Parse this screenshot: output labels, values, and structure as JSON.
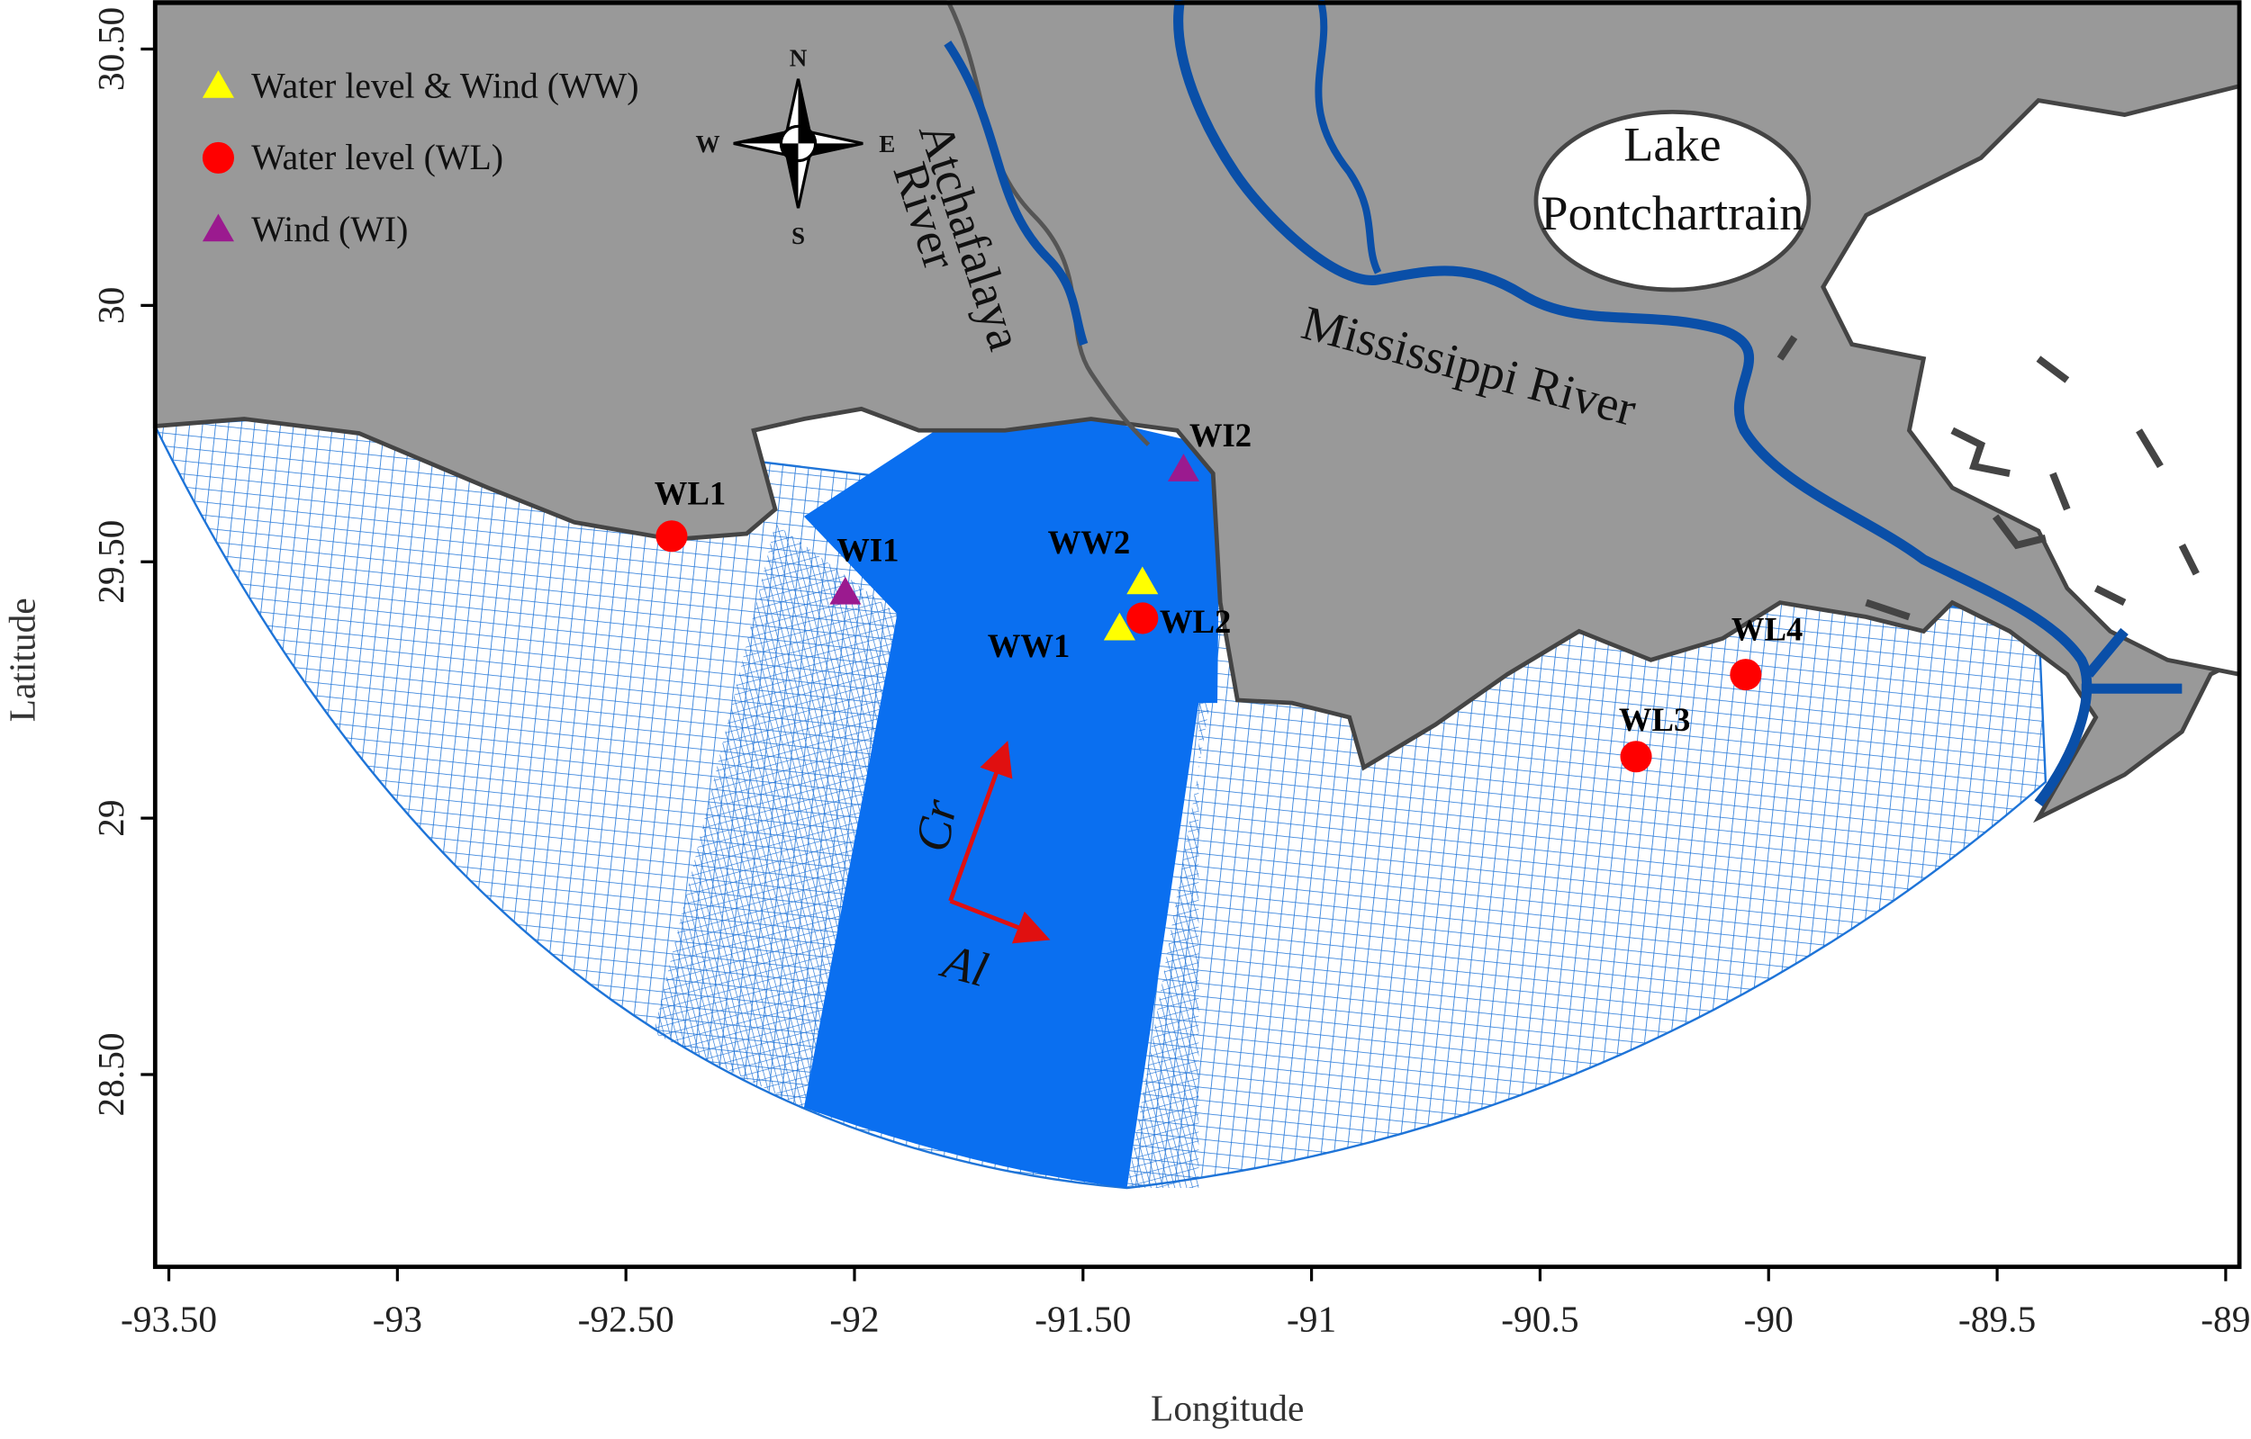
{
  "chart_data": {
    "type": "map",
    "xlabel": "Longitude",
    "ylabel": "Latitude",
    "xlim": [
      -93.53,
      -88.97
    ],
    "ylim": [
      28.125,
      30.59
    ],
    "xticks": [
      {
        "value": -93.5,
        "label": "-93.50"
      },
      -93,
      {
        "value": -92.5,
        "label": "-92.50"
      },
      -92,
      {
        "value": -91.5,
        "label": "-91.50"
      },
      -91,
      -90.5,
      -90,
      -89.5,
      -89
    ],
    "yticks": [
      {
        "value": 28.5,
        "label": "28.50"
      },
      29,
      {
        "value": 29.5,
        "label": "29.50"
      },
      30,
      {
        "value": 30.5,
        "label": "30.50"
      }
    ],
    "series": [
      {
        "name": "Water level & Wind (WW)",
        "color": "#ffff00",
        "marker": "triangle",
        "labels": [
          "WW1",
          "WW2"
        ],
        "x": [
          -91.42,
          -91.37
        ],
        "y": [
          29.37,
          29.46
        ]
      },
      {
        "name": "Water level  (WL)",
        "color": "#ff0000",
        "marker": "circle",
        "labels": [
          "WL1",
          "WL2",
          "WL3",
          "WL4"
        ],
        "x": [
          -92.4,
          -91.37,
          -90.29,
          -90.05
        ],
        "y": [
          29.55,
          29.39,
          29.12,
          29.28
        ]
      },
      {
        "name": " Wind  (WI)",
        "color": "#9b1a8f",
        "marker": "triangle",
        "labels": [
          "WI1",
          "WI2"
        ],
        "x": [
          -92.02,
          -91.28
        ],
        "y": [
          29.44,
          29.68
        ]
      }
    ],
    "annotations": {
      "river1": [
        "Atchafalaya",
        "River"
      ],
      "river2": "Mississippi River",
      "lake": [
        "Lake",
        "Pontchartrain"
      ],
      "arrows": [
        "Cr",
        "Al"
      ]
    },
    "compass": {
      "n": "N",
      "s": "S",
      "w": "W",
      "e": "E"
    }
  }
}
